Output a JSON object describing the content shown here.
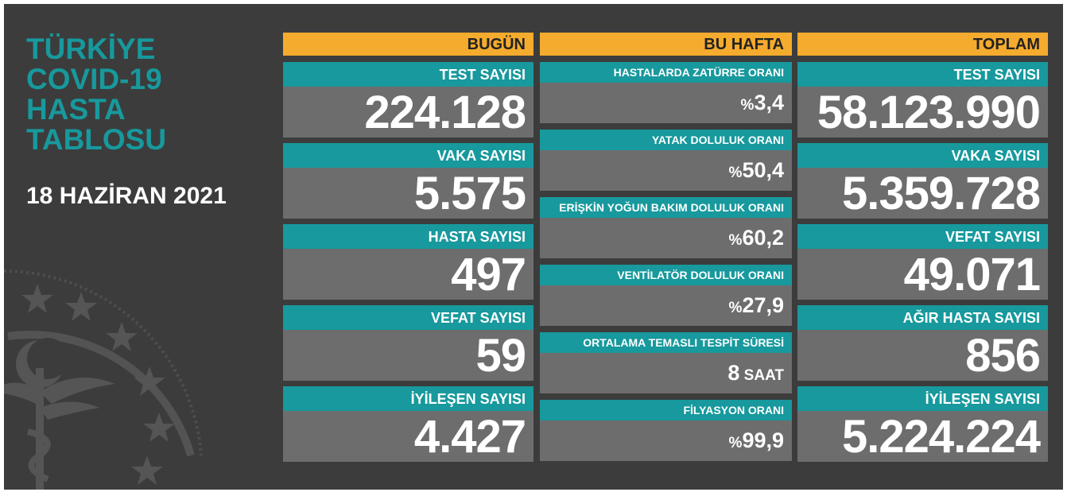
{
  "title": [
    "TÜRKİYE",
    "COVID-19",
    "HASTA",
    "TABLOSU"
  ],
  "date": "18 HAZİRAN 2021",
  "colors": {
    "background": "#3c3c3c",
    "header": "#f5ab2e",
    "label": "#17999d",
    "value": "#6d6d6d",
    "title": "#17999d"
  },
  "today": {
    "header": "BUGÜN",
    "items": [
      {
        "label": "TEST SAYISI",
        "value": "224.128"
      },
      {
        "label": "VAKA SAYISI",
        "value": "5.575"
      },
      {
        "label": "HASTA SAYISI",
        "value": "497"
      },
      {
        "label": "VEFAT SAYISI",
        "value": "59"
      },
      {
        "label": "İYİLEŞEN SAYISI",
        "value": "4.427"
      }
    ]
  },
  "week": {
    "header": "BU HAFTA",
    "items": [
      {
        "label": "HASTALARDA ZATÜRRE ORANI",
        "prefix": "%",
        "value": "3,4",
        "unit": ""
      },
      {
        "label": "YATAK DOLULUK ORANI",
        "prefix": "%",
        "value": "50,4",
        "unit": ""
      },
      {
        "label": "ERİŞKİN YOĞUN BAKIM DOLULUK ORANI",
        "prefix": "%",
        "value": "60,2",
        "unit": ""
      },
      {
        "label": "VENTİLATÖR DOLULUK ORANI",
        "prefix": "%",
        "value": "27,9",
        "unit": ""
      },
      {
        "label": "ORTALAMA TEMASLI TESPİT SÜRESİ",
        "prefix": "",
        "value": "8",
        "unit": " SAAT"
      },
      {
        "label": "FİLYASYON ORANI",
        "prefix": "%",
        "value": "99,9",
        "unit": ""
      }
    ]
  },
  "total": {
    "header": "TOPLAM",
    "items": [
      {
        "label": "TEST SAYISI",
        "value": "58.123.990"
      },
      {
        "label": "VAKA SAYISI",
        "value": "5.359.728"
      },
      {
        "label": "VEFAT SAYISI",
        "value": "49.071"
      },
      {
        "label": "AĞIR HASTA SAYISI",
        "value": "856"
      },
      {
        "label": "İYİLEŞEN SAYISI",
        "value": "5.224.224"
      }
    ]
  },
  "icons": {
    "emblem": "ministry-of-health-emblem-icon"
  }
}
